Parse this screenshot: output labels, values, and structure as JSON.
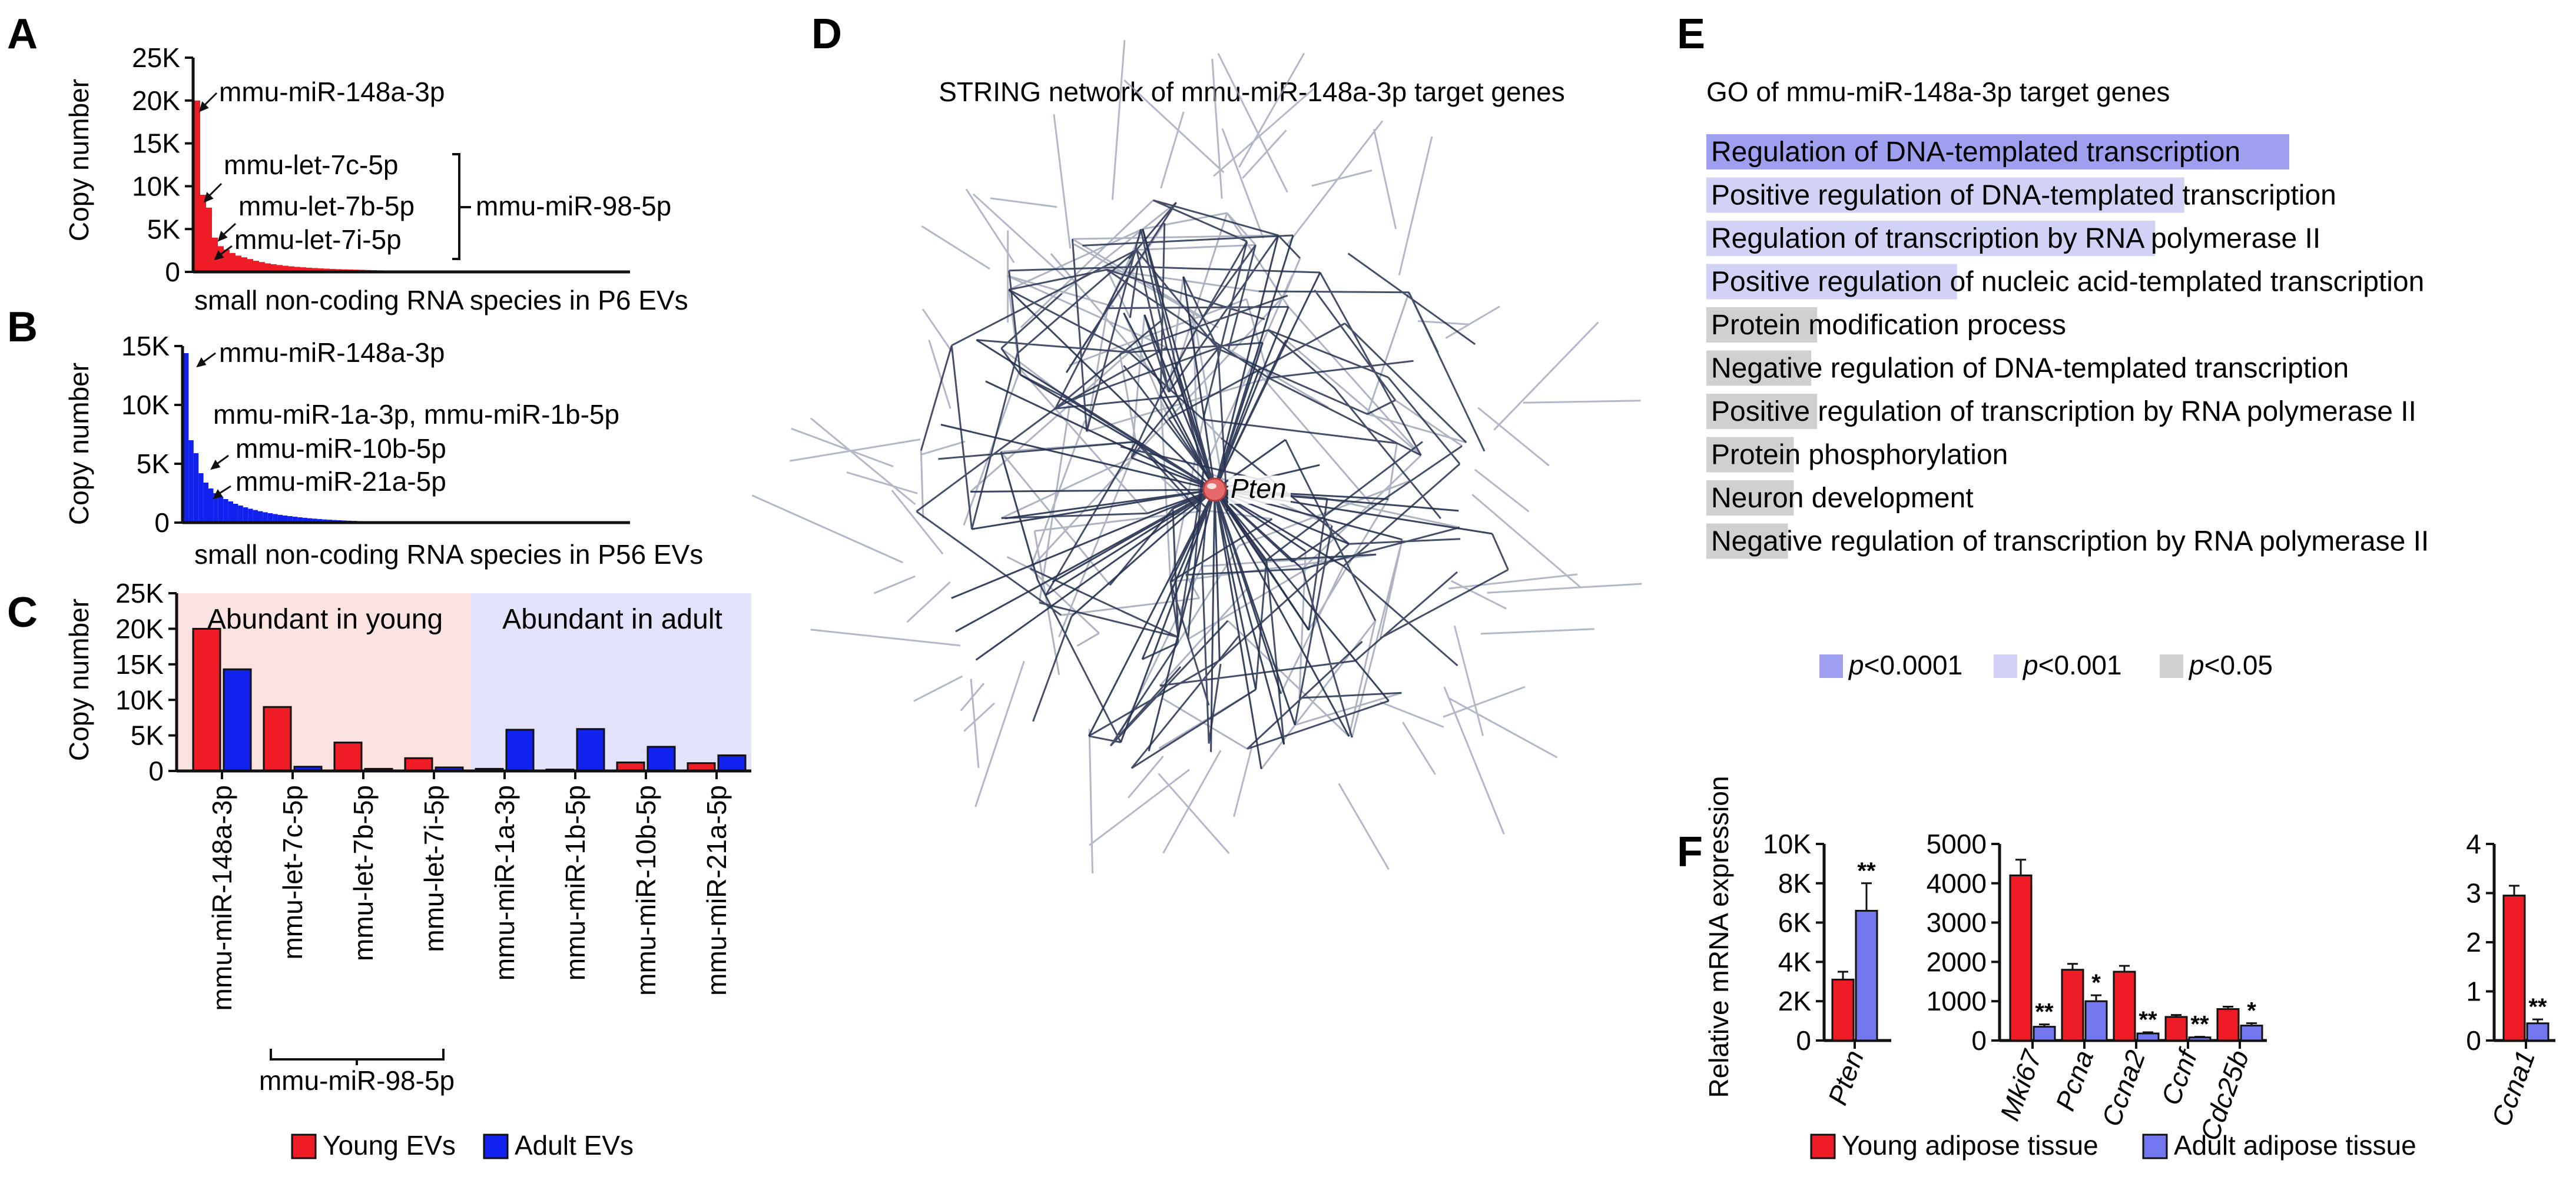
{
  "panel_letters": {
    "A": "A",
    "B": "B",
    "C": "C",
    "D": "D",
    "E": "E",
    "F": "F"
  },
  "colors": {
    "young": "#ee1c24",
    "adult": "#1122ee",
    "adult_f": "#7377f0",
    "young_bg": "#fbe3e1",
    "adult_bg": "#e2e2fb",
    "p0001": "#9f9ff0",
    "p001": "#d2d2f6",
    "p05": "#d0d0d0",
    "network": "#24304f",
    "node": "#e66a6a"
  },
  "chart_data": [
    {
      "id": "A",
      "type": "bar",
      "ylabel": "Copy number",
      "xlabel": "small non-coding RNA species in P6 EVs",
      "yticks": [
        "0",
        "5K",
        "10K",
        "15K",
        "20K",
        "25K"
      ],
      "ylim": [
        0,
        25000
      ],
      "values": [
        20000,
        9000,
        7500,
        4000,
        3000,
        2600,
        2200,
        1900,
        1700,
        1500,
        1300,
        1150,
        1000,
        900,
        800,
        720,
        650,
        590,
        540,
        490,
        450,
        410,
        380,
        350,
        320,
        300,
        280,
        260,
        240,
        220,
        200,
        185,
        170,
        155,
        140,
        128,
        116,
        105,
        95,
        86,
        78,
        70,
        63,
        56,
        50,
        45,
        40,
        35,
        31,
        27,
        23,
        20,
        17,
        14,
        12,
        10,
        8,
        6,
        5,
        4
      ],
      "annotations": [
        "mmu-miR-148a-3p",
        "mmu-let-7c-5p",
        "mmu-let-7b-5p",
        "mmu-let-7i-5p"
      ],
      "bracket_label": "mmu-miR-98-5p"
    },
    {
      "id": "B",
      "type": "bar",
      "ylabel": "Copy number",
      "xlabel": "small non-coding RNA species in P56 EVs",
      "yticks": [
        "0",
        "5K",
        "10K",
        "15K"
      ],
      "ylim": [
        0,
        15000
      ],
      "values": [
        14400,
        7000,
        5900,
        4200,
        3400,
        2900,
        2500,
        2200,
        2000,
        1800,
        1600,
        1450,
        1300,
        1180,
        1070,
        970,
        880,
        800,
        730,
        660,
        600,
        550,
        500,
        450,
        410,
        370,
        335,
        300,
        270,
        245,
        220,
        200,
        180,
        160,
        145,
        130,
        115,
        100,
        88,
        76,
        65,
        55,
        46,
        38,
        30,
        23,
        16,
        10
      ],
      "annotations": [
        "mmu-miR-148a-3p",
        "mmu-miR-1a-3p, mmu-miR-1b-5p",
        "mmu-miR-10b-5p",
        "mmu-miR-21a-5p"
      ]
    },
    {
      "id": "C",
      "type": "bar",
      "ylabel": "Copy number",
      "yticks": [
        "0",
        "5K",
        "10K",
        "15K",
        "20K",
        "25K"
      ],
      "ylim": [
        0,
        25000
      ],
      "categories": [
        "mmu-miR-148a-3p",
        "mmu-let-7c-5p",
        "mmu-let-7b-5p",
        "mmu-let-7i-5p",
        "mmu-miR-1a-3p",
        "mmu-miR-1b-5p",
        "mmu-miR-10b-5p",
        "mmu-miR-21a-5p"
      ],
      "series": [
        {
          "name": "Young EVs",
          "values": [
            20000,
            9000,
            4000,
            1800,
            300,
            200,
            1200,
            1100
          ]
        },
        {
          "name": "Adult EVs",
          "values": [
            14300,
            600,
            300,
            500,
            5800,
            5900,
            3400,
            2200
          ]
        }
      ],
      "region_labels": [
        "Abundant in young",
        "Abundant in adult"
      ],
      "bracket_label": "mmu-miR-98-5p"
    },
    {
      "id": "E",
      "type": "bar",
      "title": "GO of mmu-miR-148a-3p target genes",
      "categories": [
        "Regulation of DNA-templated transcription",
        "Positive regulation of DNA-templated transcription",
        "Regulation of transcription by RNA polymerase II",
        "Positive regulation of nucleic acid-templated transcription",
        "Protein modification process",
        "Negative regulation of DNA-templated transcription",
        "Positive regulation of transcription by RNA polymerase II",
        "Protein phosphorylation",
        "Neuron development",
        "Negative regulation of transcription by RNA polymerase II"
      ],
      "values": [
        1.0,
        0.82,
        0.77,
        0.43,
        0.19,
        0.18,
        0.19,
        0.15,
        0.15,
        0.14
      ],
      "significance": [
        "p<0.0001",
        "p<0.001",
        "p<0.001",
        "p<0.001",
        "p<0.05",
        "p<0.05",
        "p<0.05",
        "p<0.05",
        "p<0.05",
        "p<0.05"
      ],
      "legend": [
        {
          "p": "p",
          "rest": "<0.0001"
        },
        {
          "p": "p",
          "rest": "<0.001"
        },
        {
          "p": "p",
          "rest": "<0.05"
        }
      ]
    },
    {
      "id": "F",
      "type": "bar",
      "ylabel": "Relative mRNA expression",
      "legend": [
        "Young adipose tissue",
        "Adult adipose tissue"
      ],
      "groups": [
        {
          "yticks": [
            "0",
            "2K",
            "4K",
            "6K",
            "8K",
            "10K"
          ],
          "ylim": [
            0,
            10000
          ],
          "categories": [
            "Pten"
          ],
          "young": [
            3100
          ],
          "young_err": [
            400
          ],
          "adult": [
            6600
          ],
          "adult_err": [
            1400
          ],
          "stars": [
            "**"
          ]
        },
        {
          "yticks": [
            "0",
            "1000",
            "2000",
            "3000",
            "4000",
            "5000"
          ],
          "ylim": [
            0,
            5000
          ],
          "categories": [
            "Mki67",
            "Pcna",
            "Ccna2",
            "Ccnf",
            "Cdc25b"
          ],
          "young": [
            4200,
            1800,
            1750,
            600,
            800
          ],
          "young_err": [
            400,
            150,
            150,
            50,
            60
          ],
          "adult": [
            350,
            1000,
            180,
            80,
            380
          ],
          "adult_err": [
            60,
            150,
            30,
            15,
            60
          ],
          "stars": [
            "**",
            "*",
            "**",
            "**",
            "*"
          ]
        },
        {
          "yticks": [
            "0",
            "1",
            "2",
            "3",
            "4"
          ],
          "ylim": [
            0,
            4
          ],
          "categories": [
            "Ccna1"
          ],
          "young": [
            2.95
          ],
          "young_err": [
            0.2
          ],
          "adult": [
            0.35
          ],
          "adult_err": [
            0.08
          ],
          "stars": [
            "**"
          ]
        }
      ]
    }
  ],
  "network": {
    "title": "STRING network of mmu-miR-148a-3p target genes",
    "hub": "Pten"
  }
}
